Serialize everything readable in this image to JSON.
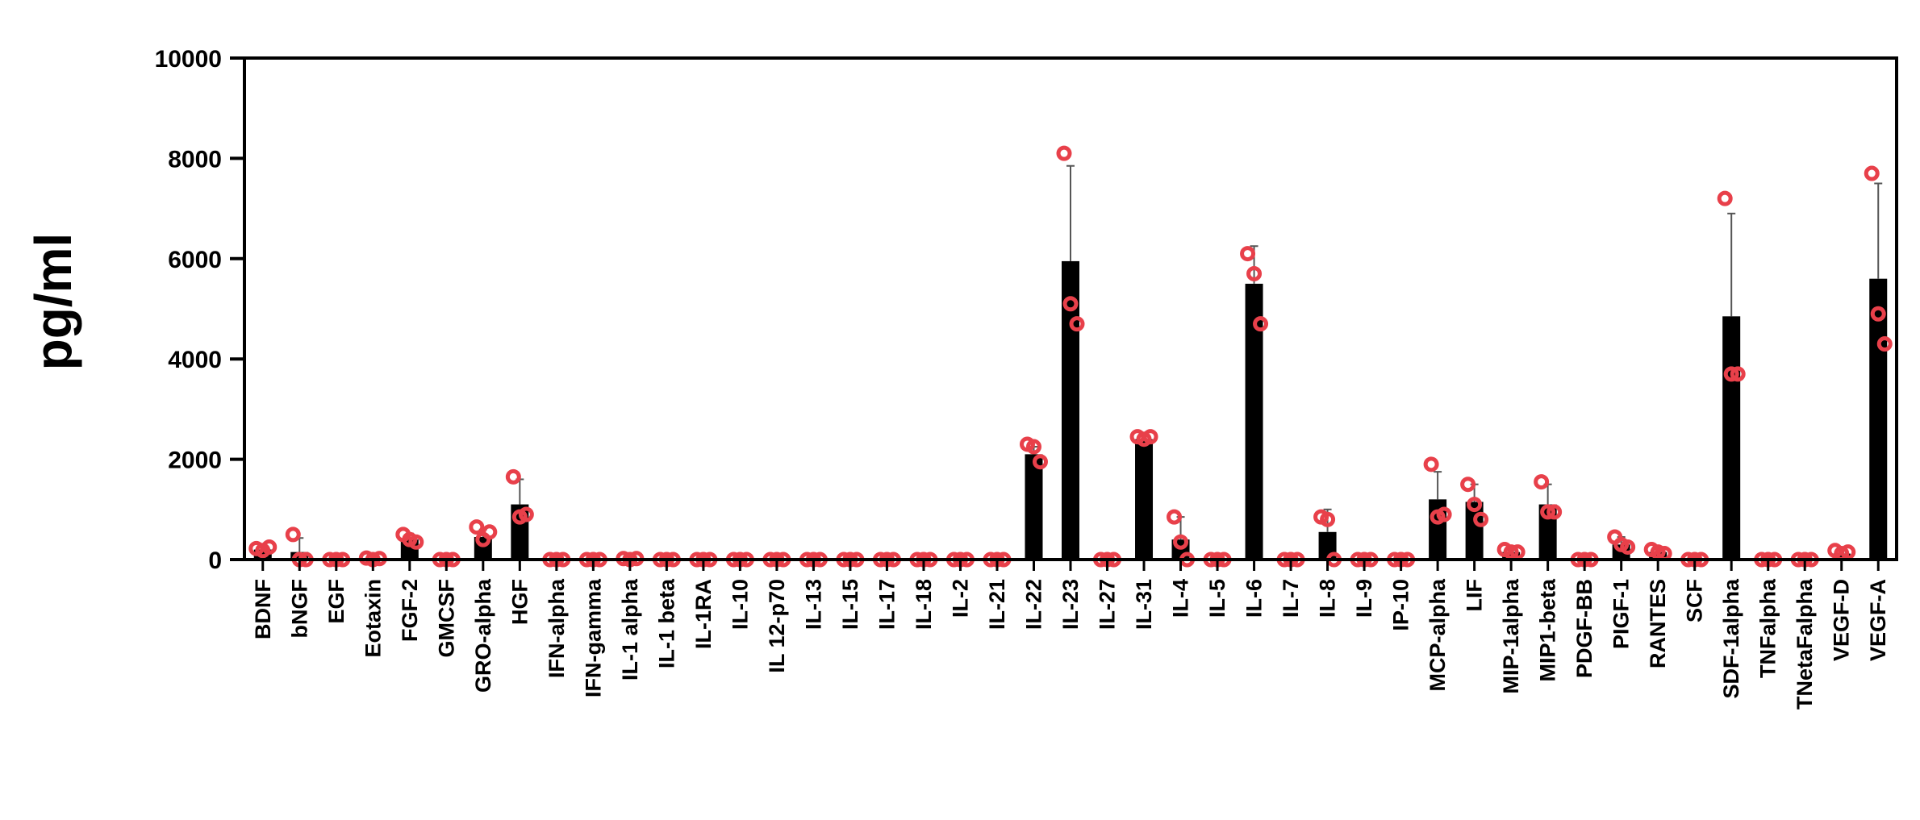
{
  "chart_data": {
    "type": "bar",
    "title": "",
    "xlabel": "",
    "ylabel": "pg/ml",
    "ylim": [
      0,
      10000
    ],
    "yticks": [
      0,
      2000,
      4000,
      6000,
      8000,
      10000
    ],
    "grid": false,
    "legend": "none",
    "colors": {
      "bar": "#000000",
      "point": "#e8404a",
      "axis": "#000000"
    },
    "categories": [
      "BDNF",
      "bNGF",
      "EGF",
      "Eotaxin",
      "FGF-2",
      "GMCSF",
      "GRO-alpha",
      "HGF",
      "IFN-alpha",
      "IFN-gamma",
      "IL-1 alpha",
      "IL-1 beta",
      "IL-1RA",
      "IL-10",
      "IL 12-p70",
      "IL-13",
      "IL-15",
      "IL-17",
      "IL-18",
      "IL-2",
      "IL-21",
      "IL-22",
      "IL-23",
      "IL-27",
      "IL-31",
      "IL-4",
      "IL-5",
      "IL-6",
      "IL-7",
      "IL-8",
      "IL-9",
      "IP-10",
      "MCP-alpha",
      "LIF",
      "MIP-1alpha",
      "MIP1-beta",
      "PDGF-BB",
      "PIGF-1",
      "RANTES",
      "SCF",
      "SDF-1alpha",
      "TNFalpha",
      "TNetaFalpha",
      "VEGF-D",
      "VEGF-A"
    ],
    "values": [
      200,
      150,
      0,
      0,
      400,
      0,
      450,
      1100,
      0,
      0,
      0,
      0,
      0,
      0,
      0,
      0,
      0,
      0,
      0,
      0,
      0,
      2100,
      5950,
      0,
      2400,
      400,
      0,
      5500,
      0,
      550,
      0,
      0,
      1200,
      1150,
      150,
      1100,
      0,
      300,
      150,
      0,
      4850,
      0,
      0,
      120,
      5600
    ],
    "error": [
      60,
      280,
      0,
      30,
      120,
      0,
      150,
      500,
      0,
      0,
      30,
      0,
      0,
      0,
      0,
      0,
      0,
      0,
      0,
      0,
      0,
      150,
      1900,
      0,
      60,
      450,
      0,
      750,
      0,
      450,
      0,
      0,
      550,
      350,
      40,
      400,
      0,
      150,
      60,
      0,
      2050,
      0,
      0,
      60,
      1900
    ],
    "points": [
      [
        220,
        180,
        250
      ],
      [
        500,
        0,
        0
      ],
      [
        0,
        0,
        0
      ],
      [
        30,
        0,
        20
      ],
      [
        500,
        400,
        350
      ],
      [
        0,
        0,
        0
      ],
      [
        650,
        400,
        550
      ],
      [
        1650,
        850,
        900
      ],
      [
        0,
        0,
        0
      ],
      [
        0,
        0,
        0
      ],
      [
        20,
        0,
        20
      ],
      [
        0,
        0,
        0
      ],
      [
        0,
        0,
        0
      ],
      [
        0,
        0,
        0
      ],
      [
        0,
        0,
        0
      ],
      [
        0,
        0,
        0
      ],
      [
        0,
        0,
        0
      ],
      [
        0,
        0,
        0
      ],
      [
        0,
        0,
        0
      ],
      [
        0,
        0,
        0
      ],
      [
        0,
        0,
        0
      ],
      [
        2300,
        2250,
        1950
      ],
      [
        8100,
        5100,
        4700
      ],
      [
        0,
        0,
        0
      ],
      [
        2450,
        2400,
        2450
      ],
      [
        850,
        350,
        0
      ],
      [
        0,
        0,
        0
      ],
      [
        6100,
        5700,
        4700
      ],
      [
        0,
        0,
        0
      ],
      [
        850,
        800,
        0
      ],
      [
        0,
        0,
        0
      ],
      [
        0,
        0,
        0
      ],
      [
        1900,
        850,
        900
      ],
      [
        1500,
        1100,
        800
      ],
      [
        200,
        150,
        150
      ],
      [
        1550,
        950,
        950
      ],
      [
        0,
        0,
        0
      ],
      [
        450,
        300,
        250
      ],
      [
        200,
        150,
        120
      ],
      [
        0,
        0,
        0
      ],
      [
        7200,
        3700,
        3700
      ],
      [
        0,
        0,
        0
      ],
      [
        0,
        0,
        0
      ],
      [
        180,
        120,
        150
      ],
      [
        7700,
        4900,
        4300
      ]
    ]
  }
}
